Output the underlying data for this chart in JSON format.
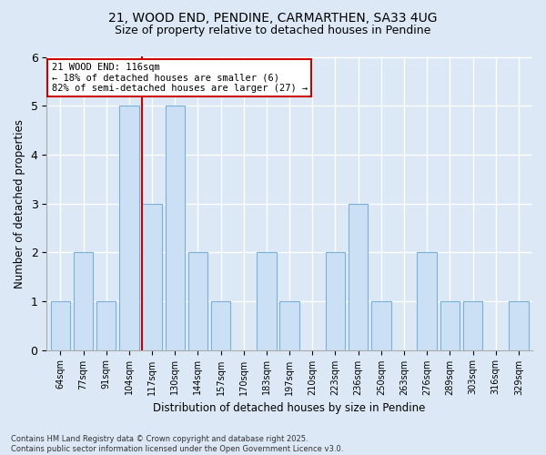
{
  "title_line1": "21, WOOD END, PENDINE, CARMARTHEN, SA33 4UG",
  "title_line2": "Size of property relative to detached houses in Pendine",
  "xlabel": "Distribution of detached houses by size in Pendine",
  "ylabel": "Number of detached properties",
  "categories": [
    "64sqm",
    "77sqm",
    "91sqm",
    "104sqm",
    "117sqm",
    "130sqm",
    "144sqm",
    "157sqm",
    "170sqm",
    "183sqm",
    "197sqm",
    "210sqm",
    "223sqm",
    "236sqm",
    "250sqm",
    "263sqm",
    "276sqm",
    "289sqm",
    "303sqm",
    "316sqm",
    "329sqm"
  ],
  "values": [
    1,
    2,
    1,
    5,
    3,
    5,
    2,
    1,
    0,
    2,
    1,
    0,
    2,
    3,
    1,
    0,
    2,
    1,
    1,
    0,
    1
  ],
  "highlight_index": 4,
  "bar_color": "#cce0f5",
  "bar_edge_color": "#7ab0d4",
  "highlight_line_color": "#cc0000",
  "ylim": [
    0,
    6
  ],
  "yticks": [
    0,
    1,
    2,
    3,
    4,
    5,
    6
  ],
  "annotation_text": "21 WOOD END: 116sqm\n← 18% of detached houses are smaller (6)\n82% of semi-detached houses are larger (27) →",
  "annotation_box_color": "#ffffff",
  "annotation_box_edge": "#cc0000",
  "footer_text": "Contains HM Land Registry data © Crown copyright and database right 2025.\nContains public sector information licensed under the Open Government Licence v3.0.",
  "bg_color": "#dce8f5",
  "grid_color": "#ffffff",
  "title_fontsize": 10,
  "subtitle_fontsize": 9
}
